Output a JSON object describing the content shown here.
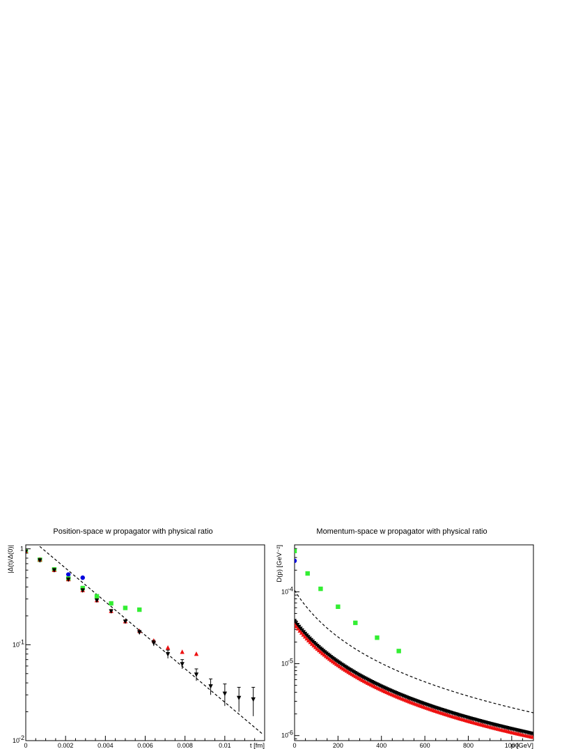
{
  "chart_data": [
    {
      "type": "scatter",
      "title": "Position-space w propagator with physical ratio",
      "xlabel": "t [fm]",
      "ylabel": "|Δ(t)/Δ(0)|",
      "xlim": [
        0,
        0.012
      ],
      "ylim": [
        0.01,
        1.1
      ],
      "y_scale": "log",
      "x_ticks": [
        {
          "v": 0,
          "label": "0"
        },
        {
          "v": 0.002,
          "label": "0.002"
        },
        {
          "v": 0.004,
          "label": "0.004"
        },
        {
          "v": 0.006,
          "label": "0.006"
        },
        {
          "v": 0.008,
          "label": "0.008"
        },
        {
          "v": 0.01,
          "label": "0.01"
        }
      ],
      "y_ticks": [
        {
          "v": 0.01,
          "base": "10",
          "exp": "-2"
        },
        {
          "v": 0.1,
          "base": "10",
          "exp": "-1"
        },
        {
          "v": 1,
          "base": "1",
          "exp": ""
        }
      ],
      "fit_line": {
        "style": "dashed",
        "x": [
          0.0007,
          0.0119
        ],
        "y": [
          1.06,
          0.0117
        ]
      },
      "series": [
        {
          "color": "#0000dd",
          "marker": "circle",
          "x": [
            0,
            0.00071,
            0.00143,
            0.00214,
            0.00286
          ],
          "y": [
            0.93,
            0.77,
            0.61,
            0.54,
            0.5
          ],
          "err": [
            0,
            0,
            0,
            0,
            0
          ]
        },
        {
          "color": "#33ee33",
          "marker": "square",
          "x": [
            0,
            0.00071,
            0.00143,
            0.00214,
            0.00286,
            0.00357,
            0.00429,
            0.005,
            0.00571
          ],
          "y": [
            0.94,
            0.77,
            0.61,
            0.49,
            0.39,
            0.32,
            0.27,
            0.242,
            0.232
          ],
          "err": [
            0,
            0,
            0,
            0,
            0,
            0,
            0,
            0,
            0
          ]
        },
        {
          "color": "#ee1111",
          "marker": "triangle-up",
          "x": [
            0,
            0.00071,
            0.00143,
            0.00214,
            0.00286,
            0.00357,
            0.00429,
            0.005,
            0.00571,
            0.00643,
            0.00714,
            0.00786,
            0.00857
          ],
          "y": [
            0.94,
            0.77,
            0.6,
            0.48,
            0.37,
            0.29,
            0.224,
            0.175,
            0.139,
            0.11,
            0.093,
            0.084,
            0.08
          ],
          "err": [
            0,
            0,
            0,
            0,
            0,
            0,
            0,
            0,
            0,
            0,
            0,
            0,
            0
          ]
        },
        {
          "color": "#000000",
          "marker": "triangle-down",
          "x": [
            0,
            0.00071,
            0.00143,
            0.00214,
            0.00286,
            0.00357,
            0.00429,
            0.005,
            0.00571,
            0.00643,
            0.00714,
            0.00786,
            0.00857,
            0.00929,
            0.01,
            0.01071,
            0.01143
          ],
          "y": [
            0.94,
            0.76,
            0.6,
            0.48,
            0.37,
            0.29,
            0.224,
            0.175,
            0.135,
            0.104,
            0.08,
            0.063,
            0.049,
            0.037,
            0.031,
            0.028,
            0.027
          ],
          "err": [
            0,
            0,
            0,
            0,
            0,
            0,
            0,
            0.005,
            0.006,
            0.007,
            0.008,
            0.007,
            0.007,
            0.007,
            0.008,
            0.008,
            0.009
          ]
        }
      ]
    },
    {
      "type": "scatter",
      "title": "Momentum-space w propagator with physical ratio",
      "xlabel": "p [GeV]",
      "ylabel": "D(p) [GeV⁻²]",
      "xlim": [
        0,
        1100
      ],
      "ylim": [
        8.5e-07,
        0.00045
      ],
      "y_scale": "log",
      "x_ticks": [
        {
          "v": 0,
          "label": "0"
        },
        {
          "v": 200,
          "label": "200"
        },
        {
          "v": 400,
          "label": "400"
        },
        {
          "v": 600,
          "label": "600"
        },
        {
          "v": 800,
          "label": "800"
        },
        {
          "v": 1000,
          "label": "1000"
        }
      ],
      "y_ticks": [
        {
          "v": 1e-06,
          "base": "10",
          "exp": "-6"
        },
        {
          "v": 1e-05,
          "base": "10",
          "exp": "-5"
        },
        {
          "v": 0.0001,
          "base": "10",
          "exp": "-4"
        }
      ],
      "fit_curve": {
        "style": "dashed",
        "form": "A/(p+B)^2",
        "A": 3.4,
        "B": 180,
        "x_start": 0
      },
      "data_curve": {
        "form": "A/(p+B)^2",
        "A": 1.75,
        "B": 215
      },
      "series": [
        {
          "color": "#0000dd",
          "marker": "circle",
          "x": [
            0
          ],
          "y": [
            0.00027
          ]
        },
        {
          "color": "#33ee33",
          "marker": "square",
          "x": [
            0,
            60,
            120,
            200,
            280,
            380,
            480
          ],
          "y": [
            0.00037,
            0.00018,
            0.00011,
            6.2e-05,
            3.7e-05,
            2.3e-05,
            1.5e-05
          ]
        },
        {
          "color": "#ee1111",
          "marker": "triangle-up",
          "x_range": [
            0,
            1100
          ],
          "step": 8,
          "offset": -0.03
        },
        {
          "color": "#000000",
          "marker": "triangle-down",
          "x_range": [
            0,
            1100
          ],
          "step": 7,
          "offset": 0.02
        }
      ]
    }
  ]
}
